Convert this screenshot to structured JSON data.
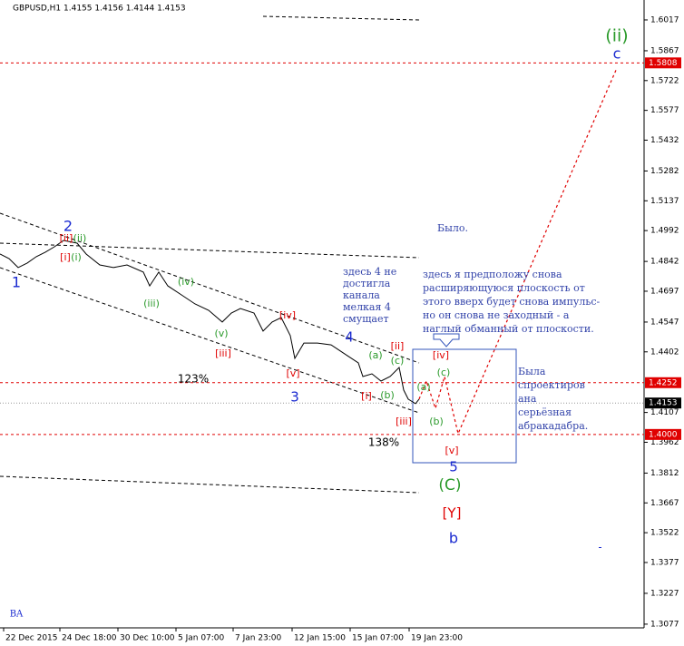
{
  "chart_data": {
    "type": "line",
    "title": "GBPUSD,H1  1.4155 1.4156 1.4144 1.4153",
    "x": [
      0,
      2,
      4,
      6,
      8,
      10,
      12,
      14,
      17,
      19,
      22,
      25,
      28,
      31.6,
      33,
      35,
      37,
      40,
      43,
      46,
      49,
      51,
      53,
      56,
      58,
      60,
      62,
      64,
      65,
      67,
      70,
      73,
      76,
      79,
      80,
      82,
      84,
      86,
      88,
      89,
      90,
      91.6,
      92.4,
      94,
      96,
      98,
      101,
      136
    ],
    "series": [
      {
        "color": "#000000",
        "values": [
          1.4878,
          1.4856,
          1.4812,
          1.4834,
          1.4865,
          1.4887,
          1.4913,
          1.4944,
          1.4931,
          1.4878,
          1.4825,
          1.4812,
          1.4825,
          1.479,
          1.4723,
          1.479,
          1.4723,
          1.4679,
          1.4635,
          1.4604,
          1.4547,
          1.4591,
          1.4613,
          1.4591,
          1.4503,
          1.4547,
          1.4569,
          1.4481,
          1.437,
          1.4445,
          1.4445,
          1.4436,
          1.4392,
          1.4348,
          1.4282,
          1.4295,
          1.426,
          1.4282,
          1.4326,
          1.4216,
          1.4172,
          1.415,
          1.4172,
          null,
          null,
          null,
          null,
          null
        ]
      },
      {
        "color": "#e00000",
        "dashed": true,
        "values": [
          null,
          null,
          null,
          null,
          null,
          null,
          null,
          null,
          null,
          null,
          null,
          null,
          null,
          null,
          null,
          null,
          null,
          null,
          null,
          null,
          null,
          null,
          null,
          null,
          null,
          null,
          null,
          null,
          null,
          null,
          null,
          null,
          null,
          null,
          null,
          null,
          null,
          null,
          null,
          null,
          null,
          null,
          1.4172,
          1.426,
          1.4127,
          1.4282,
          1.4004,
          1.5783
        ]
      }
    ],
    "xlim": [
      0,
      142
    ],
    "xticks": [
      {
        "value": 0.8,
        "label": "22 Dec 2015"
      },
      {
        "value": 13.2,
        "label": "24 Dec 18:00"
      },
      {
        "value": 26,
        "label": "30 Dec 10:00"
      },
      {
        "value": 38.8,
        "label": "5 Jan 07:00"
      },
      {
        "value": 51.4,
        "label": "7 Jan 23:00"
      },
      {
        "value": 64.4,
        "label": "12 Jan 15:00"
      },
      {
        "value": 77.2,
        "label": "15 Jan 07:00"
      },
      {
        "value": 90.2,
        "label": "19 Jan 23:00"
      }
    ],
    "ylim": [
      1.3059,
      1.6114
    ],
    "yticks": [
      1.6017,
      1.5867,
      1.5722,
      1.5577,
      1.5432,
      1.5282,
      1.5137,
      1.4992,
      1.4842,
      1.4697,
      1.4547,
      1.4402,
      1.4107,
      1.3962,
      1.3812,
      1.3667,
      1.3522,
      1.3377,
      1.3227,
      1.3077
    ],
    "levels": [
      {
        "value": 1.5808,
        "color": "#e00000"
      },
      {
        "value": 1.4252,
        "color": "#e00000"
      },
      {
        "value": 1.4,
        "label": "1.4000",
        "color": "#e00000"
      }
    ],
    "current_price": {
      "value": 1.4153,
      "color": "#000000"
    },
    "annotations": [
      {
        "text": "(ii)",
        "color": "#2a9a2a"
      },
      {
        "text": "c",
        "color": "#1a2ad0"
      },
      {
        "text": "2",
        "color": "#1a2ad0"
      },
      {
        "text": "1",
        "color": "#1a2ad0"
      },
      {
        "text": "[ii]",
        "color": "#e00000"
      },
      {
        "text": "(ii)",
        "color": "#2a9a2a"
      },
      {
        "text": "[i]",
        "color": "#e00000"
      },
      {
        "text": "(i)",
        "color": "#2a9a2a"
      },
      {
        "text": "(iii)",
        "color": "#2a9a2a"
      },
      {
        "text": "(iv)",
        "color": "#2a9a2a"
      },
      {
        "text": "(v)",
        "color": "#2a9a2a"
      },
      {
        "text": "[iii]",
        "color": "#e00000"
      },
      {
        "text": "[iv]",
        "color": "#e00000"
      },
      {
        "text": "[v]",
        "color": "#e00000"
      },
      {
        "text": "3",
        "color": "#1a2ad0"
      },
      {
        "text": "4",
        "color": "#1a2ad0"
      },
      {
        "text": "123%",
        "color": "#000000"
      },
      {
        "text": "138%",
        "color": "#000000"
      },
      {
        "text": "(a)",
        "color": "#2a9a2a"
      },
      {
        "text": "[ii]",
        "color": "#e00000"
      },
      {
        "text": "(c)",
        "color": "#2a9a2a"
      },
      {
        "text": "[i]",
        "color": "#e00000"
      },
      {
        "text": "(b)",
        "color": "#2a9a2a"
      },
      {
        "text": "[iii]",
        "color": "#e00000"
      },
      {
        "text": "(a)",
        "color": "#2a9a2a"
      },
      {
        "text": "(c)",
        "color": "#2a9a2a"
      },
      {
        "text": "(b)",
        "color": "#2a9a2a"
      },
      {
        "text": "[iv]",
        "color": "#e00000"
      },
      {
        "text": "[v]",
        "color": "#e00000"
      },
      {
        "text": "5",
        "color": "#1a2ad0"
      },
      {
        "text": "(C)",
        "color": "#2a9a2a"
      },
      {
        "text": "[Y]",
        "color": "#e00000"
      },
      {
        "text": "b",
        "color": "#1a2ad0"
      },
      {
        "text": "BA",
        "color": "#1a2ad0"
      },
      {
        "text": "Было.",
        "color": "#3344aa"
      }
    ],
    "notes": [
      {
        "lines": [
          "здесь 4 не",
          "достигла",
          "канала",
          "мелкая 4",
          "смущает"
        ],
        "color": "#3344aa"
      },
      {
        "lines": [
          "здесь я предположу снова",
          "расширяющуюся плоскость от",
          "этого вверх будет снова импульс-",
          "но он снова не заходный - а",
          "наглый обманный от плоскости."
        ],
        "color": "#3344aa"
      },
      {
        "lines": [
          "Была",
          "спроектиров",
          "ана",
          "серьёзная",
          "абракадабра."
        ],
        "color": "#3344aa"
      }
    ]
  }
}
